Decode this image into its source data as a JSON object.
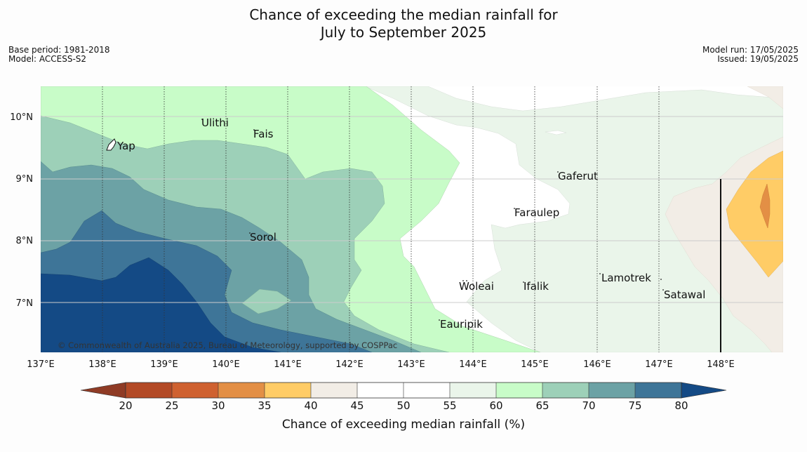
{
  "header": {
    "title_line1": "Chance of exceeding the median rainfall for",
    "title_line2": "July to September 2025"
  },
  "meta": {
    "base_period": "Base period: 1981-2018",
    "model": "Model: ACCESS-S2",
    "model_run": "Model run: 17/05/2025",
    "issued": "Issued: 19/05/2025"
  },
  "map": {
    "longitude_labels": [
      "137°E",
      "138°E",
      "139°E",
      "140°E",
      "141°E",
      "142°E",
      "143°E",
      "144°E",
      "145°E",
      "146°E",
      "147°E",
      "148°E"
    ],
    "latitude_labels": [
      "10°N",
      "9°N",
      "8°N",
      "7°N"
    ],
    "places": [
      {
        "name": "Yap"
      },
      {
        "name": "Ulithi"
      },
      {
        "name": "Fais"
      },
      {
        "name": "Gaferut"
      },
      {
        "name": "Faraulep"
      },
      {
        "name": "Sorol"
      },
      {
        "name": "Lamotrek"
      },
      {
        "name": "Woleai"
      },
      {
        "name": "Ifalik"
      },
      {
        "name": "Satawal"
      },
      {
        "name": "Eauripik"
      }
    ],
    "copyright": "© Commonwealth of Australia 2025, Bureau of Meteorology, supported by COSPPac"
  },
  "colorbar": {
    "label": "Chance of exceeding median rainfall (%)",
    "ticks": [
      "20",
      "25",
      "30",
      "35",
      "40",
      "45",
      "50",
      "55",
      "60",
      "65",
      "70",
      "75",
      "80"
    ],
    "colors": {
      "below_20": "#8f3b25",
      "20_25": "#b34a26",
      "25_30": "#cf6130",
      "30_35": "#e38f45",
      "35_40": "#ffcc66",
      "40_45": "#f2ede6",
      "45_50": "#ffffff",
      "50_55": "#ffffff",
      "55_60": "#eaf5ea",
      "60_65": "#c8fcc8",
      "65_70": "#9dd0b8",
      "70_75": "#6ca2a5",
      "75_80": "#3e7598",
      "above_80": "#144a85"
    }
  }
}
